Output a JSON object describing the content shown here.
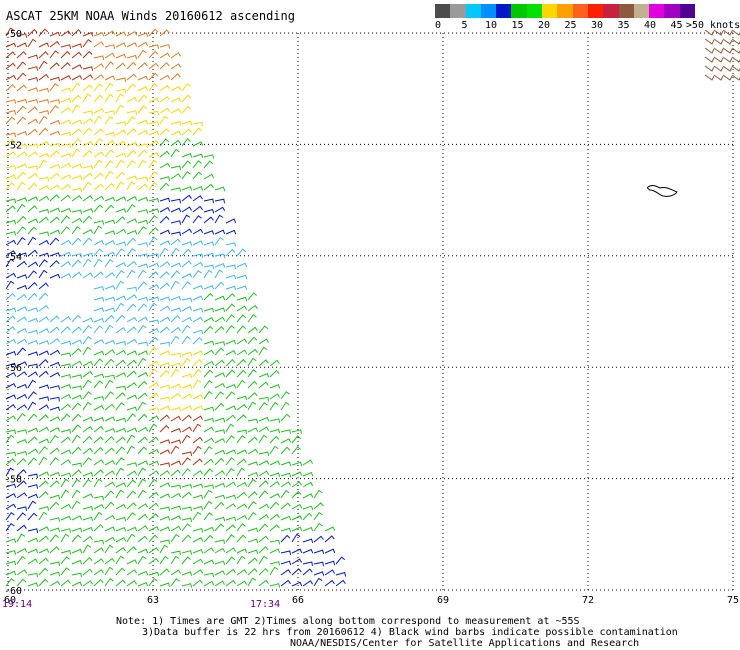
{
  "title": "ASCAT 25KM NOAA Winds 20160612 ascending",
  "legend": {
    "colors": [
      "#4d4d4d",
      "#9a9a9a",
      "#00c8ff",
      "#0090ff",
      "#0018c8",
      "#00c800",
      "#00e000",
      "#f8d800",
      "#ffa000",
      "#ff6020",
      "#ff2000",
      "#c82040",
      "#8c5a3c",
      "#c0b090",
      "#e000e0",
      "#a000c0",
      "#500090"
    ],
    "ticks": [
      "0",
      "5",
      "10",
      "15",
      "20",
      "25",
      "30",
      "35",
      "40",
      "45",
      ">50 knots"
    ]
  },
  "axes": {
    "x_labels": [
      "60",
      "63",
      "66",
      "69",
      "72",
      "75"
    ],
    "y_labels": [
      "-50",
      "-52",
      "-54",
      "-56",
      "-58",
      "-60"
    ],
    "lon_range": [
      60,
      75
    ],
    "lat_range": [
      -60,
      -50
    ]
  },
  "time_labels": [
    "19:14",
    "17:34"
  ],
  "notes": [
    "Note: 1) Times are GMT 2)Times along bottom correspond to measurement at ~55S",
    "3)Data buffer is 22 hrs from 20160612 4) Black wind barbs indicate possible contamination",
    "NOAA/NESDIS/Center for Satellite Applications and Research"
  ],
  "swath": {
    "description_colors": {
      "orange": "#e07a20",
      "yellow": "#f8d800",
      "green": "#20c020",
      "blue": "#0018c8",
      "cyan": "#40b8e8",
      "dark_red": "#b03010"
    }
  }
}
